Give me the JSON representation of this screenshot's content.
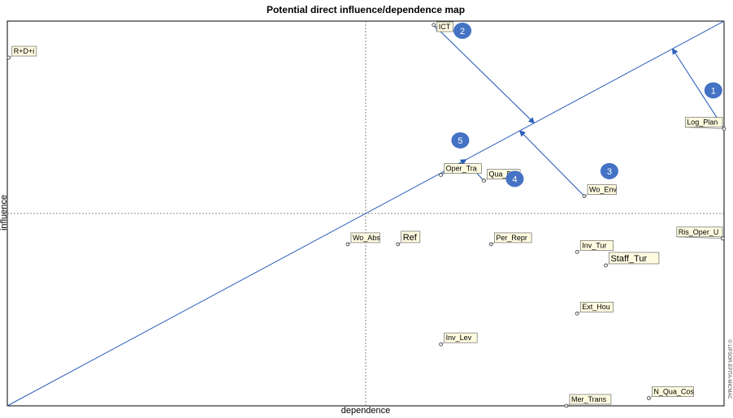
{
  "chart_data": {
    "type": "scatter",
    "title": "Potential direct influence/dependence map",
    "xlabel": "dependence",
    "ylabel": "influence",
    "xlim": [
      0,
      100
    ],
    "ylim": [
      0,
      100
    ],
    "grid": false,
    "crosshair": {
      "x": 50,
      "y": 50
    },
    "points": [
      {
        "label": "R+D+i",
        "x": 0.2,
        "y": 90.5
      },
      {
        "label": "ICT",
        "x": 59.5,
        "y": 99.0
      },
      {
        "label": "Log_Plan",
        "x": 100,
        "y": 72.0
      },
      {
        "label": "Oper_Tra",
        "x": 60.5,
        "y": 60.0
      },
      {
        "label": "Qua_Def",
        "x": 66.5,
        "y": 58.5
      },
      {
        "label": "Wo_Env",
        "x": 80.5,
        "y": 54.5
      },
      {
        "label": "Ris_Oper_U",
        "x": 99.8,
        "y": 43.5
      },
      {
        "label": "Wo_Abs",
        "x": 47.5,
        "y": 42.0
      },
      {
        "label": "Ref",
        "x": 54.5,
        "y": 42.0
      },
      {
        "label": "Per_Repr",
        "x": 67.5,
        "y": 42.0
      },
      {
        "label": "Inv_Tur",
        "x": 79.5,
        "y": 40.0
      },
      {
        "label": "Staff_Tur",
        "x": 83.5,
        "y": 36.5
      },
      {
        "label": "Ext_Hou",
        "x": 79.5,
        "y": 24.0
      },
      {
        "label": "Inv_Lev",
        "x": 60.5,
        "y": 16.0
      },
      {
        "label": "Mer_Trans",
        "x": 78.0,
        "y": 0.0
      },
      {
        "label": "N_Qua_Cos",
        "x": 89.5,
        "y": 2.0
      }
    ],
    "diagonal": {
      "from": [
        0,
        0
      ],
      "to": [
        100,
        100
      ]
    },
    "arrows": [
      {
        "from": [
          100,
          72.0
        ],
        "to": [
          92.8,
          92.8
        ]
      },
      {
        "from": [
          59.5,
          99.0
        ],
        "to": [
          73.5,
          73.5
        ]
      },
      {
        "from": [
          80.5,
          54.5
        ],
        "to": [
          71.5,
          71.5
        ]
      },
      {
        "from": [
          66.5,
          58.5
        ],
        "to": [
          64.5,
          62.5
        ]
      },
      {
        "from": [
          60.5,
          60.0
        ],
        "to": [
          64.0,
          64.0
        ]
      }
    ],
    "badges": [
      {
        "text": "1",
        "x": 98.5,
        "y": 82.0
      },
      {
        "text": "2",
        "x": 63.5,
        "y": 97.5
      },
      {
        "text": "3",
        "x": 84.0,
        "y": 61.0
      },
      {
        "text": "4",
        "x": 70.8,
        "y": 59.0
      },
      {
        "text": "5",
        "x": 63.2,
        "y": 69.0
      }
    ],
    "watermark": "© LIPSOR-EPITA-MICMAC"
  }
}
